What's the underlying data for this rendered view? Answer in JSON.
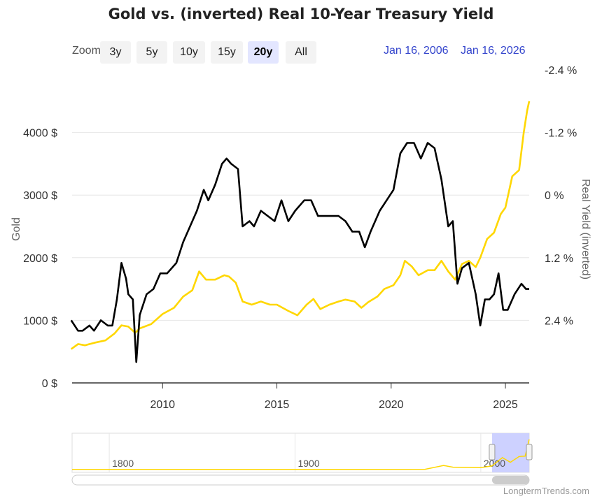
{
  "toolbar": {
    "zoom_label": "Zoom",
    "buttons": [
      "3y",
      "5y",
      "10y",
      "15y",
      "20y",
      "All"
    ],
    "active": "20y",
    "range_from": "Jan 16, 2006",
    "range_to": "Jan 16, 2026"
  },
  "credits": "LongtermTrends.com",
  "colors": {
    "gold": "#FFD700",
    "real_yield": "#000000",
    "navigator_mask": "#c8ccff",
    "range_text": "#3344cc"
  },
  "chart_data": {
    "type": "line",
    "title": "Gold vs. (inverted) Real 10-Year Treasury Yield",
    "xlabel": "",
    "x_ticks": [
      "2010",
      "2015",
      "2020",
      "2025"
    ],
    "xlim": [
      2006.04,
      2026.04
    ],
    "left_axis": {
      "label": "Gold",
      "ticks": [
        "0 $",
        "1000 $",
        "2000 $",
        "3000 $",
        "4000 $"
      ],
      "ylim": [
        0,
        5000
      ]
    },
    "right_axis": {
      "label": "Real Yield (inverted)",
      "ticks": [
        "-2.4 %",
        "-1.2 %",
        "0 %",
        "1.2 %",
        "2.4 %"
      ],
      "ylim": [
        -2.4,
        3.6
      ],
      "inverted": true
    },
    "grid": true,
    "series": [
      {
        "axis": "left",
        "color": "#FFD700",
        "points": [
          [
            2006.0,
            540
          ],
          [
            2006.3,
            620
          ],
          [
            2006.6,
            600
          ],
          [
            2007.0,
            640
          ],
          [
            2007.5,
            680
          ],
          [
            2007.9,
            790
          ],
          [
            2008.2,
            920
          ],
          [
            2008.5,
            900
          ],
          [
            2008.8,
            800
          ],
          [
            2009.0,
            870
          ],
          [
            2009.5,
            940
          ],
          [
            2010.0,
            1100
          ],
          [
            2010.5,
            1200
          ],
          [
            2010.9,
            1380
          ],
          [
            2011.3,
            1480
          ],
          [
            2011.6,
            1780
          ],
          [
            2011.9,
            1650
          ],
          [
            2012.3,
            1650
          ],
          [
            2012.7,
            1720
          ],
          [
            2012.9,
            1700
          ],
          [
            2013.2,
            1600
          ],
          [
            2013.5,
            1300
          ],
          [
            2013.9,
            1250
          ],
          [
            2014.3,
            1300
          ],
          [
            2014.7,
            1250
          ],
          [
            2015.0,
            1250
          ],
          [
            2015.5,
            1150
          ],
          [
            2015.9,
            1080
          ],
          [
            2016.3,
            1250
          ],
          [
            2016.6,
            1340
          ],
          [
            2016.9,
            1180
          ],
          [
            2017.3,
            1250
          ],
          [
            2017.7,
            1300
          ],
          [
            2018.0,
            1330
          ],
          [
            2018.4,
            1300
          ],
          [
            2018.7,
            1200
          ],
          [
            2019.0,
            1290
          ],
          [
            2019.4,
            1380
          ],
          [
            2019.7,
            1500
          ],
          [
            2020.1,
            1560
          ],
          [
            2020.4,
            1720
          ],
          [
            2020.6,
            1950
          ],
          [
            2020.9,
            1860
          ],
          [
            2021.2,
            1720
          ],
          [
            2021.6,
            1800
          ],
          [
            2021.9,
            1800
          ],
          [
            2022.2,
            1950
          ],
          [
            2022.5,
            1780
          ],
          [
            2022.8,
            1650
          ],
          [
            2023.1,
            1900
          ],
          [
            2023.4,
            1950
          ],
          [
            2023.7,
            1850
          ],
          [
            2023.9,
            2000
          ],
          [
            2024.2,
            2300
          ],
          [
            2024.5,
            2400
          ],
          [
            2024.8,
            2700
          ],
          [
            2025.0,
            2800
          ],
          [
            2025.3,
            3300
          ],
          [
            2025.6,
            3400
          ],
          [
            2025.8,
            4000
          ],
          [
            2025.95,
            4350
          ],
          [
            2026.04,
            4500
          ]
        ]
      },
      {
        "axis": "right",
        "color": "#000000",
        "points": [
          [
            2006.0,
            2.4
          ],
          [
            2006.3,
            2.6
          ],
          [
            2006.5,
            2.6
          ],
          [
            2006.8,
            2.5
          ],
          [
            2007.0,
            2.6
          ],
          [
            2007.3,
            2.4
          ],
          [
            2007.6,
            2.5
          ],
          [
            2007.8,
            2.5
          ],
          [
            2008.0,
            2.0
          ],
          [
            2008.2,
            1.3
          ],
          [
            2008.4,
            1.6
          ],
          [
            2008.5,
            1.9
          ],
          [
            2008.7,
            2.0
          ],
          [
            2008.85,
            3.2
          ],
          [
            2009.0,
            2.3
          ],
          [
            2009.3,
            1.9
          ],
          [
            2009.6,
            1.8
          ],
          [
            2009.9,
            1.5
          ],
          [
            2010.2,
            1.5
          ],
          [
            2010.6,
            1.3
          ],
          [
            2010.9,
            0.9
          ],
          [
            2011.2,
            0.6
          ],
          [
            2011.5,
            0.3
          ],
          [
            2011.8,
            -0.1
          ],
          [
            2012.0,
            0.1
          ],
          [
            2012.3,
            -0.2
          ],
          [
            2012.6,
            -0.6
          ],
          [
            2012.8,
            -0.7
          ],
          [
            2013.0,
            -0.6
          ],
          [
            2013.3,
            -0.5
          ],
          [
            2013.5,
            0.6
          ],
          [
            2013.8,
            0.5
          ],
          [
            2014.0,
            0.6
          ],
          [
            2014.3,
            0.3
          ],
          [
            2014.6,
            0.4
          ],
          [
            2014.9,
            0.5
          ],
          [
            2015.2,
            0.1
          ],
          [
            2015.5,
            0.5
          ],
          [
            2015.8,
            0.3
          ],
          [
            2016.2,
            0.1
          ],
          [
            2016.5,
            0.1
          ],
          [
            2016.8,
            0.4
          ],
          [
            2017.1,
            0.4
          ],
          [
            2017.4,
            0.4
          ],
          [
            2017.7,
            0.4
          ],
          [
            2018.0,
            0.5
          ],
          [
            2018.3,
            0.7
          ],
          [
            2018.6,
            0.7
          ],
          [
            2018.85,
            1.0
          ],
          [
            2019.1,
            0.7
          ],
          [
            2019.5,
            0.3
          ],
          [
            2019.8,
            0.1
          ],
          [
            2020.1,
            -0.1
          ],
          [
            2020.4,
            -0.8
          ],
          [
            2020.7,
            -1.0
          ],
          [
            2021.0,
            -1.0
          ],
          [
            2021.3,
            -0.7
          ],
          [
            2021.6,
            -1.0
          ],
          [
            2021.9,
            -0.9
          ],
          [
            2022.2,
            -0.3
          ],
          [
            2022.5,
            0.6
          ],
          [
            2022.7,
            0.5
          ],
          [
            2022.9,
            1.7
          ],
          [
            2023.1,
            1.4
          ],
          [
            2023.4,
            1.3
          ],
          [
            2023.7,
            1.9
          ],
          [
            2023.9,
            2.5
          ],
          [
            2024.1,
            2.0
          ],
          [
            2024.3,
            2.0
          ],
          [
            2024.5,
            1.9
          ],
          [
            2024.7,
            1.5
          ],
          [
            2024.9,
            2.2
          ],
          [
            2025.1,
            2.2
          ],
          [
            2025.4,
            1.9
          ],
          [
            2025.7,
            1.7
          ],
          [
            2025.9,
            1.8
          ],
          [
            2026.04,
            1.8
          ]
        ]
      }
    ],
    "navigator": {
      "x_ticks": [
        "1800",
        "1900",
        "2000"
      ],
      "xlim": [
        1780,
        2026.04
      ],
      "selected_range": [
        2006.04,
        2026.04
      ]
    }
  }
}
